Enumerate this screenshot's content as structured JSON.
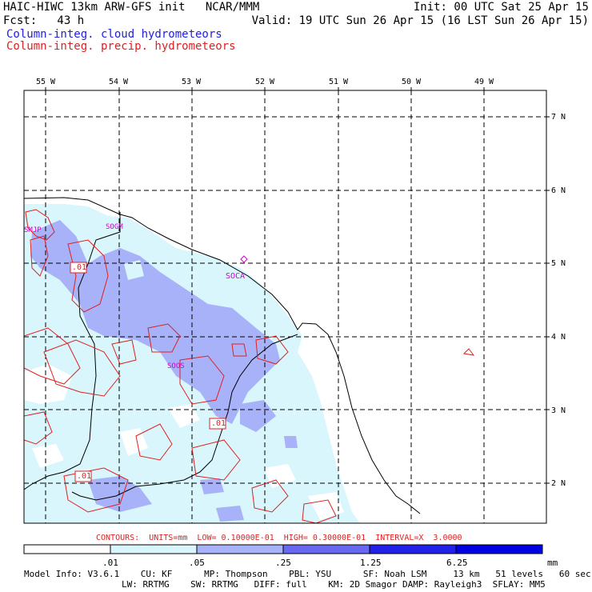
{
  "header": {
    "title_left": "HAIC-HIWC 13km ARW-GFS init   NCAR/MMM",
    "init": "Init: 00 UTC Sat 25 Apr 15",
    "fcst": "Fcst:   43 h",
    "valid": "Valid: 19 UTC Sun 26 Apr 15 (16 LST Sun 26 Apr 15)",
    "field_cloud": "Column-integ. cloud hydrometeors",
    "field_precip": "Column-integ. precip. hydrometeors"
  },
  "axes": {
    "longitudes": [
      "55 W",
      "54 W",
      "53 W",
      "52 W",
      "51 W",
      "50 W",
      "49 W"
    ],
    "latitudes": [
      "7 N",
      "6 N",
      "5 N",
      "4 N",
      "3 N",
      "2 N"
    ]
  },
  "stations": [
    "SMJP",
    "SOGM",
    "SOCA",
    "SOOS"
  ],
  "contour_labels": [
    ".01",
    ".01",
    ".01"
  ],
  "contours_note": "CONTOURS:  UNITS=mm  LOW= 0.10000E-01  HIGH= 0.30000E-01  INTERVAL=X  3.0000",
  "colorbar": {
    "levels": [
      ".01",
      ".05",
      ".25",
      "1.25",
      "6.25"
    ],
    "units": "mm",
    "colors": [
      "#ffffff",
      "#d8f6fb",
      "#a8b2f8",
      "#6868f0",
      "#2020e8",
      "#0000e0"
    ]
  },
  "colors": {
    "cloud_light": "#d8f6fb",
    "cloud_mid": "#a8b2f8",
    "precip_contour": "#e02020",
    "station": "#d000d0"
  },
  "model_info": {
    "line1": "Model Info: V3.6.1    CU: KF      MP: Thompson    PBL: YSU      SF: Noah LSM     13 km   51 levels   60 sec",
    "line2": "LW: RRTMG    SW: RRTMG   DIFF: full    KM: 2D Smagor DAMP: Rayleigh3  SFLAY: MM5"
  }
}
